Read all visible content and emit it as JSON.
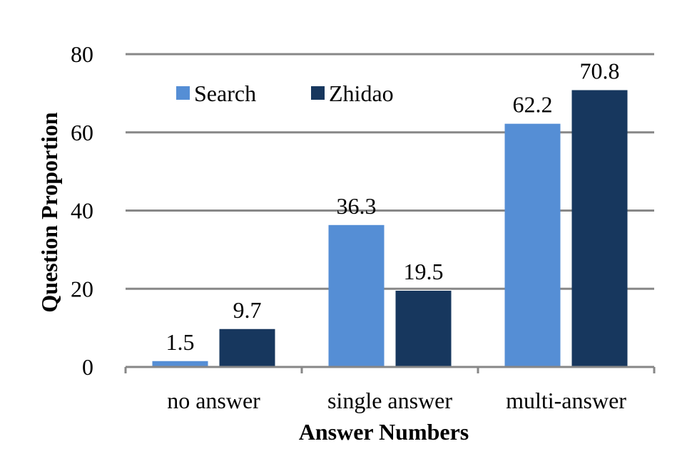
{
  "chart_data": {
    "type": "bar",
    "title": "",
    "xlabel": "Answer Numbers",
    "ylabel": "Question Proportion",
    "categories": [
      "no answer",
      "single answer",
      "multi-answer"
    ],
    "series": [
      {
        "name": "Search",
        "values": [
          1.5,
          36.3,
          62.2
        ],
        "value_labels": [
          "1.5",
          "36.3",
          "62.2"
        ],
        "color": "#558ed5"
      },
      {
        "name": "Zhidao",
        "values": [
          9.7,
          19.5,
          70.8
        ],
        "value_labels": [
          "9.7",
          "19.5",
          "70.8"
        ],
        "color": "#17375e"
      }
    ],
    "ylim": [
      0,
      80
    ],
    "yticks": [
      0,
      20,
      40,
      60,
      80
    ],
    "ytick_labels": [
      "0",
      "20",
      "40",
      "60",
      "80"
    ],
    "grid": true,
    "gridline_color": "#878787",
    "legend": {
      "position": "top-left"
    }
  }
}
